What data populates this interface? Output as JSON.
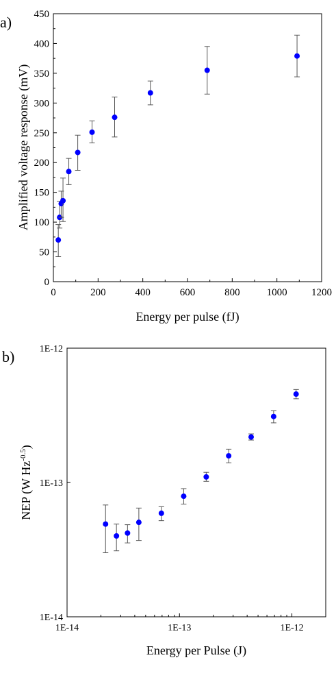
{
  "chart_data": [
    {
      "panel_label": "a)",
      "type": "scatter",
      "xlabel": "Energy per pulse (fJ)",
      "ylabel": "Amplified voltage response (mV)",
      "xscale": "linear",
      "yscale": "linear",
      "xlim": [
        0,
        1200
      ],
      "ylim": [
        0,
        450
      ],
      "xticks": [
        0,
        200,
        400,
        600,
        800,
        1000,
        1200
      ],
      "xtick_labels": [
        "0",
        "200",
        "400",
        "600",
        "800",
        "1000",
        "1200"
      ],
      "yticks": [
        0,
        50,
        100,
        150,
        200,
        250,
        300,
        350,
        400,
        450
      ],
      "ytick_labels": [
        "0",
        "50",
        "100",
        "150",
        "200",
        "250",
        "300",
        "350",
        "400",
        "450"
      ],
      "grid": false,
      "marker_color": "#0000ff",
      "errorbar_color": "#555555",
      "points": [
        {
          "x": 22,
          "y": 70,
          "yerr_low": 42,
          "yerr_high": 96
        },
        {
          "x": 28,
          "y": 108,
          "yerr_low": 90,
          "yerr_high": 135
        },
        {
          "x": 35,
          "y": 131,
          "yerr_low": 108,
          "yerr_high": 152
        },
        {
          "x": 43,
          "y": 136,
          "yerr_low": 101,
          "yerr_high": 174
        },
        {
          "x": 69,
          "y": 185,
          "yerr_low": 163,
          "yerr_high": 207
        },
        {
          "x": 109,
          "y": 217,
          "yerr_low": 187,
          "yerr_high": 246
        },
        {
          "x": 173,
          "y": 251,
          "yerr_low": 233,
          "yerr_high": 270
        },
        {
          "x": 274,
          "y": 276,
          "yerr_low": 243,
          "yerr_high": 310
        },
        {
          "x": 434,
          "y": 317,
          "yerr_low": 297,
          "yerr_high": 337
        },
        {
          "x": 688,
          "y": 355,
          "yerr_low": 315,
          "yerr_high": 395
        },
        {
          "x": 1090,
          "y": 379,
          "yerr_low": 344,
          "yerr_high": 414
        }
      ]
    },
    {
      "panel_label": "b)",
      "type": "scatter",
      "xlabel": "Energy per Pulse (J)",
      "ylabel_main": "NEP (W Hz",
      "ylabel_sup": "-0.5",
      "ylabel_end": ")",
      "xscale": "log",
      "yscale": "log",
      "xlim": [
        1e-14,
        2e-12
      ],
      "ylim": [
        1e-14,
        1e-12
      ],
      "xticks": [
        1e-14,
        1e-13,
        1e-12
      ],
      "xtick_labels": [
        "1E-14",
        "1E-13",
        "1E-12"
      ],
      "yticks": [
        1e-14,
        1e-13,
        1e-12
      ],
      "ytick_labels": [
        "1E-14",
        "1E-13",
        "1E-12"
      ],
      "grid": false,
      "marker_color": "#0000ff",
      "errorbar_color": "#555555",
      "points": [
        {
          "x": 2.2e-14,
          "y": 4.9e-14,
          "yerr_low": 3e-14,
          "yerr_high": 6.8e-14
        },
        {
          "x": 2.75e-14,
          "y": 4e-14,
          "yerr_low": 3.1e-14,
          "yerr_high": 4.9e-14
        },
        {
          "x": 3.45e-14,
          "y": 4.2e-14,
          "yerr_low": 3.55e-14,
          "yerr_high": 4.85e-14
        },
        {
          "x": 4.35e-14,
          "y": 5.05e-14,
          "yerr_low": 3.7e-14,
          "yerr_high": 6.45e-14
        },
        {
          "x": 6.9e-14,
          "y": 5.9e-14,
          "yerr_low": 5.2e-14,
          "yerr_high": 6.6e-14
        },
        {
          "x": 1.09e-13,
          "y": 7.9e-14,
          "yerr_low": 6.9e-14,
          "yerr_high": 9e-14
        },
        {
          "x": 1.73e-13,
          "y": 1.1e-13,
          "yerr_low": 1.02e-13,
          "yerr_high": 1.19e-13
        },
        {
          "x": 2.74e-13,
          "y": 1.58e-13,
          "yerr_low": 1.4e-13,
          "yerr_high": 1.77e-13
        },
        {
          "x": 4.34e-13,
          "y": 2.18e-13,
          "yerr_low": 2.07e-13,
          "yerr_high": 2.3e-13
        },
        {
          "x": 6.88e-13,
          "y": 3.1e-13,
          "yerr_low": 2.78e-13,
          "yerr_high": 3.42e-13
        },
        {
          "x": 1.09e-12,
          "y": 4.55e-13,
          "yerr_low": 4.2e-13,
          "yerr_high": 4.92e-13
        }
      ]
    }
  ]
}
